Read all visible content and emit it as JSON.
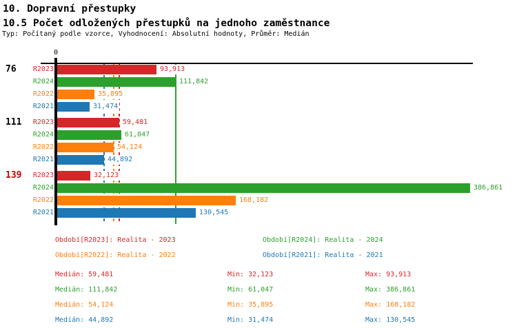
{
  "header": {
    "title1": "10. Dopravní přestupky",
    "title2": "10.5 Počet odložených přestupků na jednoho zaměstnance",
    "subtitle": "Typ: Počítaný podle vzorce, Vyhodnocení: Absolutní hodnoty, Průměr: Medián"
  },
  "chart_data": {
    "type": "bar",
    "orientation": "horizontal",
    "title": "10.5 Počet odložených přestupků na jednoho zaměstnance",
    "xlabel": "",
    "ylabel": "",
    "x_axis": {
      "zero_label": "0",
      "min": 0,
      "max_plotted_value": 386861,
      "grid": false
    },
    "series_colors": {
      "R2023": "#d62728",
      "R2024": "#2ca02c",
      "R2022": "#ff7f0e",
      "R2021": "#1f77b4"
    },
    "groups": [
      {
        "label": "76",
        "label_color": "#000000",
        "bars": [
          {
            "series": "R2023",
            "value": 93913,
            "display": "93,913"
          },
          {
            "series": "R2024",
            "value": 111842,
            "display": "111,842"
          },
          {
            "series": "R2022",
            "value": 35895,
            "display": "35,895"
          },
          {
            "series": "R2021",
            "value": 31474,
            "display": "31,474"
          }
        ]
      },
      {
        "label": "111",
        "label_color": "#000000",
        "bars": [
          {
            "series": "R2023",
            "value": 59481,
            "display": "59,481"
          },
          {
            "series": "R2024",
            "value": 61047,
            "display": "61,047"
          },
          {
            "series": "R2022",
            "value": 54124,
            "display": "54,124"
          },
          {
            "series": "R2021",
            "value": 44892,
            "display": "44,892"
          }
        ]
      },
      {
        "label": "139",
        "label_color": "#cc0000",
        "bars": [
          {
            "series": "R2023",
            "value": 32123,
            "display": "32,123"
          },
          {
            "series": "R2024",
            "value": 386861,
            "display": "386,861"
          },
          {
            "series": "R2022",
            "value": 168182,
            "display": "168,182"
          },
          {
            "series": "R2021",
            "value": 130545,
            "display": "130,545"
          }
        ]
      }
    ],
    "median_lines": [
      {
        "series": "R2021",
        "value": 44892,
        "style": "dashed"
      },
      {
        "series": "R2022",
        "value": 54124,
        "style": "dashed"
      },
      {
        "series": "R2023",
        "value": 59481,
        "style": "dashed"
      },
      {
        "series": "R2024",
        "value": 111842,
        "style": "solid"
      }
    ],
    "legend_position": "bottom"
  },
  "legend": {
    "items": [
      {
        "series": "R2023",
        "text": "Období[R2023]: Realita - 2023"
      },
      {
        "series": "R2024",
        "text": "Období[R2024]: Realita - 2024"
      },
      {
        "series": "R2022",
        "text": "Období[R2022]: Realita - 2022"
      },
      {
        "series": "R2021",
        "text": "Období[R2021]: Realita - 2021"
      }
    ]
  },
  "stats": {
    "rows": [
      {
        "series": "R2023",
        "median": "Medián: 59,481",
        "min": "Min: 32,123",
        "max": "Max: 93,913"
      },
      {
        "series": "R2024",
        "median": "Medián: 111,842",
        "min": "Min: 61,047",
        "max": "Max: 386,861"
      },
      {
        "series": "R2022",
        "median": "Medián: 54,124",
        "min": "Min: 35,895",
        "max": "Max: 168,182"
      },
      {
        "series": "R2021",
        "median": "Medián: 44,892",
        "min": "Min: 31,474",
        "max": "Max: 130,545"
      }
    ]
  }
}
